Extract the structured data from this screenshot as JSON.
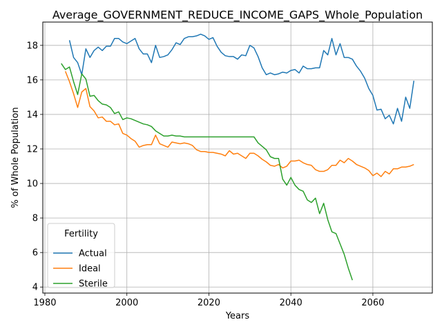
{
  "chart_data": {
    "type": "line",
    "title": "Average_GOVERNMENT_REDUCE_INCOME_GAPS_Whole_Population",
    "xlabel": "Years",
    "ylabel": "% of Whole Population",
    "xlim": [
      1979.5,
      2074.5
    ],
    "ylim": [
      3.65,
      19.35
    ],
    "xticks": [
      1980,
      2000,
      2020,
      2040,
      2060
    ],
    "yticks": [
      4,
      6,
      8,
      10,
      12,
      14,
      16,
      18
    ],
    "grid": true,
    "legend": {
      "title": "Fertility",
      "placement": "lower-left"
    },
    "series": [
      {
        "name": "Actual",
        "color": "#1f77b4",
        "x": [
          1986,
          1987,
          1988,
          1989,
          1990,
          1991,
          1992,
          1993,
          1994,
          1995,
          1996,
          1997,
          1998,
          1999,
          2000,
          2001,
          2002,
          2003,
          2004,
          2005,
          2006,
          2007,
          2008,
          2009,
          2010,
          2011,
          2012,
          2013,
          2014,
          2015,
          2016,
          2017,
          2018,
          2019,
          2020,
          2021,
          2022,
          2023,
          2024,
          2025,
          2026,
          2027,
          2028,
          2029,
          2030,
          2031,
          2032,
          2033,
          2034,
          2035,
          2036,
          2037,
          2038,
          2039,
          2040,
          2041,
          2042,
          2043,
          2044,
          2045,
          2046,
          2047,
          2048,
          2049,
          2050,
          2051,
          2052,
          2053,
          2054,
          2055,
          2056,
          2057,
          2058,
          2059,
          2060,
          2061,
          2062,
          2063,
          2064,
          2065,
          2066,
          2067,
          2068,
          2069,
          2070
        ],
        "y": [
          18.3,
          17.3,
          17.0,
          16.3,
          17.8,
          17.3,
          17.7,
          17.9,
          17.7,
          17.95,
          17.95,
          18.4,
          18.4,
          18.2,
          18.1,
          18.25,
          18.4,
          17.8,
          17.5,
          17.5,
          17.0,
          18.0,
          17.3,
          17.35,
          17.45,
          17.75,
          18.15,
          18.05,
          18.4,
          18.5,
          18.5,
          18.55,
          18.65,
          18.55,
          18.35,
          18.45,
          17.95,
          17.6,
          17.4,
          17.35,
          17.35,
          17.2,
          17.45,
          17.4,
          18.0,
          17.85,
          17.35,
          16.7,
          16.3,
          16.4,
          16.3,
          16.35,
          16.45,
          16.4,
          16.55,
          16.6,
          16.4,
          16.8,
          16.65,
          16.65,
          16.7,
          16.7,
          17.7,
          17.45,
          18.4,
          17.45,
          18.1,
          17.3,
          17.3,
          17.2,
          16.8,
          16.5,
          16.1,
          15.5,
          15.1,
          14.25,
          14.3,
          13.75,
          13.95,
          13.45,
          14.35,
          13.6,
          15.0,
          14.35,
          15.95
        ]
      },
      {
        "name": "Ideal",
        "color": "#ff7f0e",
        "x": [
          1985,
          1986,
          1987,
          1988,
          1989,
          1990,
          1991,
          1992,
          1993,
          1994,
          1995,
          1996,
          1997,
          1998,
          1999,
          2000,
          2001,
          2002,
          2003,
          2004,
          2005,
          2006,
          2007,
          2008,
          2009,
          2010,
          2011,
          2012,
          2013,
          2014,
          2015,
          2016,
          2017,
          2018,
          2019,
          2020,
          2021,
          2022,
          2023,
          2024,
          2025,
          2026,
          2027,
          2028,
          2029,
          2030,
          2031,
          2032,
          2033,
          2034,
          2035,
          2036,
          2037,
          2038,
          2039,
          2040,
          2041,
          2042,
          2043,
          2044,
          2045,
          2046,
          2047,
          2048,
          2049,
          2050,
          2051,
          2052,
          2053,
          2054,
          2055,
          2056,
          2057,
          2058,
          2059,
          2060,
          2061,
          2062,
          2063,
          2064,
          2065,
          2066,
          2067,
          2068,
          2069,
          2070
        ],
        "y": [
          16.5,
          15.9,
          15.2,
          14.4,
          15.3,
          15.5,
          14.45,
          14.2,
          13.8,
          13.85,
          13.6,
          13.6,
          13.4,
          13.45,
          12.9,
          12.8,
          12.6,
          12.45,
          12.1,
          12.2,
          12.25,
          12.25,
          12.8,
          12.3,
          12.2,
          12.1,
          12.4,
          12.35,
          12.3,
          12.35,
          12.3,
          12.2,
          11.95,
          11.85,
          11.85,
          11.8,
          11.8,
          11.75,
          11.7,
          11.6,
          11.9,
          11.7,
          11.75,
          11.6,
          11.45,
          11.75,
          11.75,
          11.6,
          11.4,
          11.25,
          11.05,
          11.0,
          11.1,
          10.9,
          11.0,
          11.3,
          11.3,
          11.35,
          11.2,
          11.1,
          11.05,
          10.8,
          10.7,
          10.7,
          10.8,
          11.05,
          11.05,
          11.35,
          11.2,
          11.45,
          11.3,
          11.1,
          11.0,
          10.9,
          10.75,
          10.45,
          10.6,
          10.4,
          10.7,
          10.55,
          10.85,
          10.85,
          10.95,
          10.95,
          11.0,
          11.1
        ]
      },
      {
        "name": "Sterile",
        "color": "#2ca02c",
        "x": [
          1984,
          1985,
          1986,
          1987,
          1988,
          1989,
          1990,
          1991,
          1992,
          1993,
          1994,
          1995,
          1996,
          1997,
          1998,
          1999,
          2000,
          2001,
          2002,
          2003,
          2004,
          2005,
          2006,
          2007,
          2008,
          2009,
          2010,
          2011,
          2012,
          2013,
          2014,
          2015,
          2016,
          2017,
          2018,
          2019,
          2020,
          2021,
          2022,
          2023,
          2024,
          2025,
          2026,
          2027,
          2028,
          2029,
          2030,
          2031,
          2032,
          2033,
          2034,
          2035,
          2036,
          2037,
          2038,
          2039,
          2040,
          2041,
          2042,
          2043,
          2044,
          2045,
          2046,
          2047,
          2048,
          2049,
          2050,
          2051,
          2052,
          2053,
          2054,
          2055
        ],
        "y": [
          16.95,
          16.6,
          16.75,
          15.9,
          15.15,
          16.35,
          16.05,
          15.05,
          15.1,
          14.8,
          14.6,
          14.55,
          14.4,
          14.05,
          14.15,
          13.7,
          13.8,
          13.75,
          13.65,
          13.55,
          13.45,
          13.4,
          13.3,
          13.05,
          12.9,
          12.75,
          12.75,
          12.8,
          12.75,
          12.75,
          12.7,
          12.7,
          12.7,
          12.7,
          12.7,
          12.7,
          12.7,
          12.7,
          12.7,
          12.7,
          12.7,
          12.7,
          12.7,
          12.7,
          12.7,
          12.7,
          12.7,
          12.7,
          12.35,
          12.15,
          11.95,
          11.55,
          11.45,
          11.45,
          10.25,
          9.9,
          10.35,
          9.9,
          9.65,
          9.55,
          9.05,
          8.9,
          9.15,
          8.25,
          8.85,
          7.9,
          7.2,
          7.1,
          6.5,
          5.9,
          5.1,
          4.4
        ]
      }
    ]
  }
}
